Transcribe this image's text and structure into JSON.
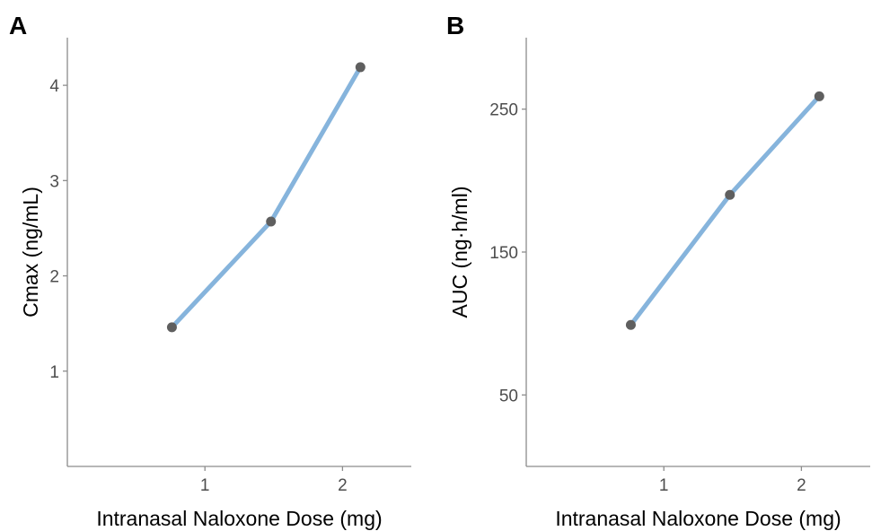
{
  "colors": {
    "line": "#86b4dc",
    "point": "#5f5f5f",
    "axis": "#8c8c8c"
  },
  "chart_data": [
    {
      "panel": "A",
      "type": "line",
      "title": "",
      "xlabel": "Intranasal Naloxone Dose (mg)",
      "ylabel": "Cmax (ng/mL)",
      "x": [
        0.76,
        1.48,
        2.13
      ],
      "values": [
        1.46,
        2.57,
        4.19
      ],
      "xlim": [
        0.0,
        2.5
      ],
      "ylim": [
        0.0,
        4.5
      ],
      "xticks": [
        1,
        2
      ],
      "yticks": [
        1,
        2,
        3,
        4
      ],
      "grid": false
    },
    {
      "panel": "B",
      "type": "line",
      "title": "",
      "xlabel": "Intranasal Naloxone Dose (mg)",
      "ylabel": "AUC (ng·h/ml)",
      "x": [
        0.76,
        1.48,
        2.13
      ],
      "values": [
        99,
        190,
        259
      ],
      "xlim": [
        0.0,
        2.5
      ],
      "ylim": [
        0,
        300
      ],
      "xticks": [
        1,
        2
      ],
      "yticks": [
        50,
        150,
        250
      ],
      "grid": false
    }
  ]
}
